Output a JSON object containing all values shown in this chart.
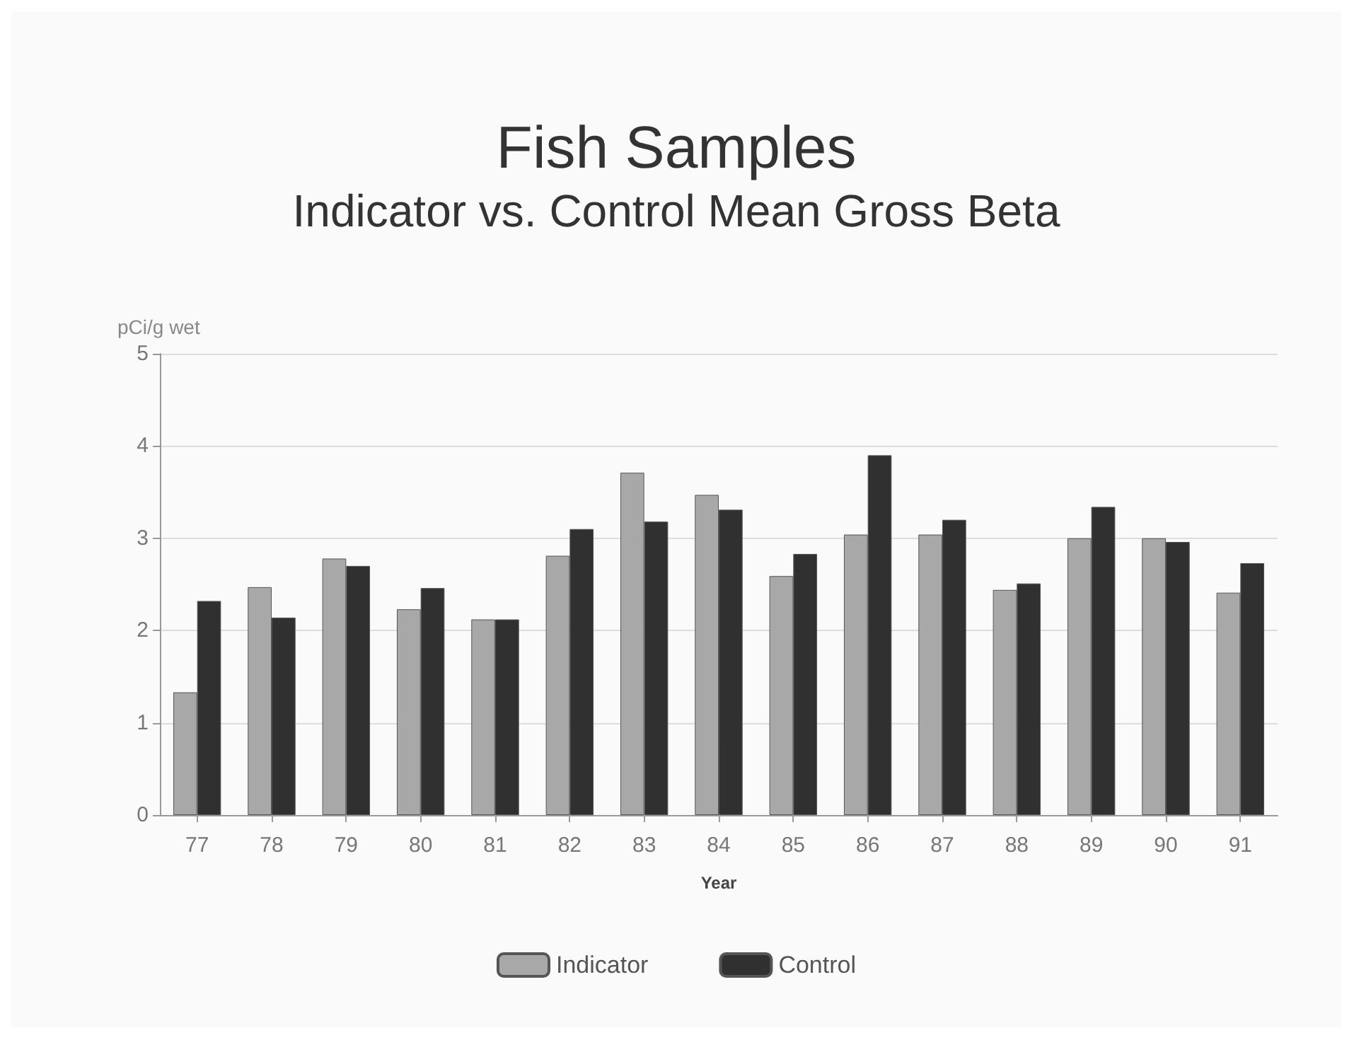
{
  "chart_data": {
    "type": "bar",
    "title": "Fish Samples",
    "subtitle": "Indicator vs. Control Mean Gross Beta",
    "xlabel": "Year",
    "ylabel": "pCi/g wet",
    "categories": [
      "77",
      "78",
      "79",
      "80",
      "81",
      "82",
      "83",
      "84",
      "85",
      "86",
      "87",
      "88",
      "89",
      "90",
      "91"
    ],
    "series": [
      {
        "name": "Indicator",
        "color": "#a8a8a8",
        "values": [
          1.33,
          2.47,
          2.78,
          2.23,
          2.12,
          2.81,
          3.71,
          3.47,
          2.59,
          3.04,
          3.04,
          2.44,
          3.0,
          3.0,
          2.41
        ]
      },
      {
        "name": "Control",
        "color": "#303030",
        "values": [
          2.32,
          2.14,
          2.7,
          2.46,
          2.12,
          3.1,
          3.18,
          3.31,
          2.83,
          3.9,
          3.2,
          2.51,
          3.34,
          2.96,
          2.73
        ]
      }
    ],
    "ylim": [
      0,
      5
    ],
    "yticks": [
      0,
      1,
      2,
      3,
      4,
      5
    ],
    "grid": "y",
    "legend": "bottom"
  }
}
